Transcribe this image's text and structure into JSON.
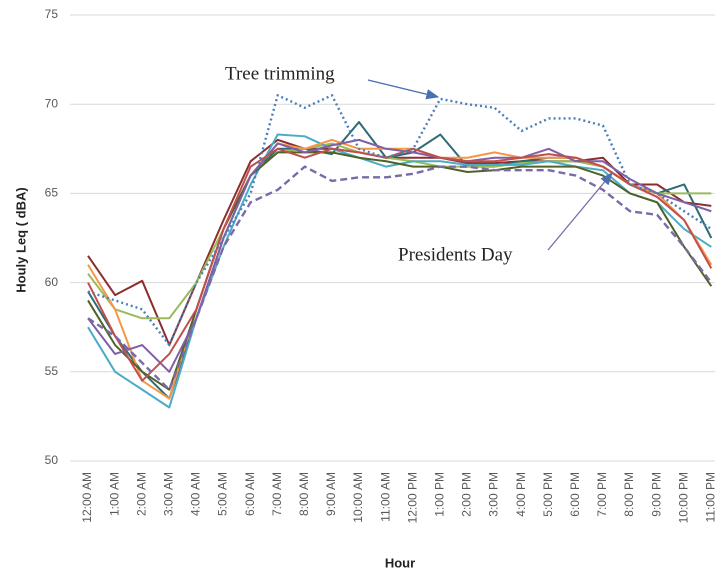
{
  "chart_data": {
    "type": "line",
    "x_label": "Hour",
    "y_label": "Houly Leq ( dBA)",
    "annotations": [
      "Tree trimming",
      "Presidents Day"
    ],
    "categories": [
      "12:00 AM",
      "1:00 AM",
      "2:00 AM",
      "3:00 AM",
      "4:00 AM",
      "5:00 AM",
      "6:00 AM",
      "7:00 AM",
      "8:00 AM",
      "9:00 AM",
      "10:00 AM",
      "11:00 AM",
      "12:00 PM",
      "1:00 PM",
      "2:00 PM",
      "3:00 PM",
      "4:00 PM",
      "5:00 PM",
      "6:00 PM",
      "7:00 PM",
      "8:00 PM",
      "9:00 PM",
      "10:00 PM",
      "11:00 PM"
    ],
    "ylim": [
      50,
      75
    ],
    "yticks": [
      50,
      55,
      60,
      65,
      70,
      75
    ],
    "grid": true,
    "series": [
      {
        "color": "#8b2e2e",
        "values": [
          61.5,
          59.3,
          60.1,
          56.5,
          60,
          63.5,
          66.8,
          68,
          67.5,
          67.5,
          67.3,
          67,
          67,
          67,
          66.7,
          66.7,
          66.8,
          66.8,
          66.8,
          67,
          65.5,
          65.5,
          64.5,
          64.3
        ]
      },
      {
        "color": "#2e6b73",
        "values": [
          59.5,
          57,
          55,
          53.5,
          58,
          62.5,
          66,
          67.5,
          67.5,
          67.2,
          69,
          67,
          67.3,
          68.3,
          66.5,
          66.5,
          66.8,
          67,
          67,
          66.5,
          65.5,
          65,
          65.5,
          62.5
        ]
      },
      {
        "color": "#9bbb59",
        "values": [
          60.5,
          58.5,
          58,
          58,
          60,
          63,
          66,
          67.3,
          67.5,
          67.8,
          67.3,
          67,
          66.8,
          66.5,
          66.5,
          66.5,
          66.7,
          66.8,
          66.8,
          66.5,
          65.5,
          65,
          65,
          65
        ]
      },
      {
        "color": "#4bacc6",
        "values": [
          57.5,
          55,
          54,
          53,
          58,
          62,
          65.5,
          68.3,
          68.2,
          67.5,
          67,
          66.5,
          66.8,
          66.8,
          66.6,
          66.6,
          66.6,
          66.8,
          66.5,
          66.3,
          65,
          64.5,
          63,
          62
        ]
      },
      {
        "color": "#f79646",
        "values": [
          61,
          58.5,
          54.5,
          53.5,
          58.5,
          63,
          66,
          67.8,
          67.5,
          68,
          67.5,
          67.5,
          67.5,
          67,
          67,
          67.3,
          67,
          67,
          67,
          66.5,
          65.5,
          65,
          63.5,
          61
        ]
      },
      {
        "color": "#4f6228",
        "values": [
          59,
          56.5,
          55,
          54,
          58.5,
          63,
          66,
          67.3,
          67.3,
          67.3,
          67,
          66.8,
          66.5,
          66.5,
          66.2,
          66.3,
          66.5,
          66.5,
          66.5,
          66,
          65,
          64.5,
          62,
          59.8
        ]
      },
      {
        "color": "#7f5fa6",
        "values": [
          58,
          56,
          56.5,
          55,
          58,
          62.5,
          66,
          67.8,
          67.3,
          67.7,
          68,
          67.5,
          67.3,
          67,
          66.8,
          67,
          67,
          67.5,
          66.8,
          66.8,
          65.8,
          65,
          64.5,
          64
        ]
      },
      {
        "color": "#c0504d",
        "values": [
          60,
          57,
          54.5,
          56,
          58.5,
          63,
          66.5,
          67.5,
          67,
          67.5,
          67.3,
          67,
          67.5,
          67,
          66.8,
          66.8,
          67,
          67.2,
          67,
          66.5,
          65.5,
          64.8,
          63.5,
          60.8
        ]
      },
      {
        "color": "#4a7ebb",
        "dash": "dotted",
        "values": [
          59.5,
          59,
          58.5,
          56.5,
          60,
          62.5,
          65,
          70.5,
          69.8,
          70.5,
          67.5,
          67,
          67.5,
          70.3,
          70,
          69.8,
          68.5,
          69.2,
          69.2,
          68.8,
          65.5,
          65,
          64,
          63
        ]
      },
      {
        "color": "#7a6aa8",
        "dash": "dashed",
        "values": [
          58,
          57,
          55.5,
          54,
          58,
          62,
          64.5,
          65.2,
          66.5,
          65.7,
          65.9,
          65.9,
          66.1,
          66.5,
          66.5,
          66.3,
          66.3,
          66.3,
          66,
          65.2,
          64,
          63.8,
          62,
          60
        ]
      }
    ]
  }
}
